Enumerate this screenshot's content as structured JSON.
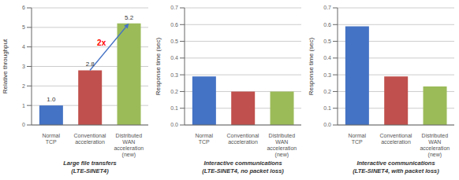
{
  "chart_data": [
    {
      "type": "bar",
      "categories": [
        "Normal\nTCP",
        "Conventional\nacceleration",
        "Distributed\nWAN\nacceleration\n(new)"
      ],
      "values": [
        1.0,
        2.8,
        5.2
      ],
      "value_labels": [
        "1.0",
        "2.8",
        "5.2"
      ],
      "data_labels": true,
      "colors": [
        "#4472c4",
        "#c0504d",
        "#9bbb59"
      ],
      "ylabel": "Relative throughput",
      "xlabel": "Large file transfers\n(LTE-SINET4)",
      "ylim": [
        0,
        6
      ],
      "yticks": [
        0,
        1,
        2,
        3,
        4,
        5,
        6
      ],
      "grid": true,
      "annotations": [
        {
          "text": "2x",
          "color": "#ff0000"
        }
      ]
    },
    {
      "type": "bar",
      "categories": [
        "Normal\nTCP",
        "Conventional\nacceleration",
        "Distributed\nWAN\nacceleration\n(new)"
      ],
      "values": [
        0.29,
        0.2,
        0.2
      ],
      "colors": [
        "#4472c4",
        "#c0504d",
        "#9bbb59"
      ],
      "ylabel": "Response time (sec)",
      "xlabel": "Interactive communications\n(LTE-SINET4, no packet loss)",
      "ylim": [
        0,
        0.7
      ],
      "yticks": [
        {
          "value": 0,
          "label": "0.0"
        },
        0.1,
        0.2,
        0.3,
        0.4,
        0.5,
        0.6,
        0.7
      ],
      "grid": true
    },
    {
      "type": "bar",
      "categories": [
        "Normal\nTCP",
        "Conventional\nacceleration",
        "Distributed\nWAN\nacceleration\n(new)"
      ],
      "values": [
        0.59,
        0.29,
        0.23
      ],
      "colors": [
        "#4472c4",
        "#c0504d",
        "#9bbb59"
      ],
      "ylabel": "Response time (sec)",
      "xlabel": "Interactive communications\n(LTE-SINET4, with packet loss)",
      "ylim": [
        0,
        0.7
      ],
      "yticks": [
        {
          "value": 0,
          "label": "0.0"
        },
        0.1,
        0.2,
        0.3,
        0.4,
        0.5,
        0.6,
        0.7
      ],
      "grid": true
    }
  ]
}
